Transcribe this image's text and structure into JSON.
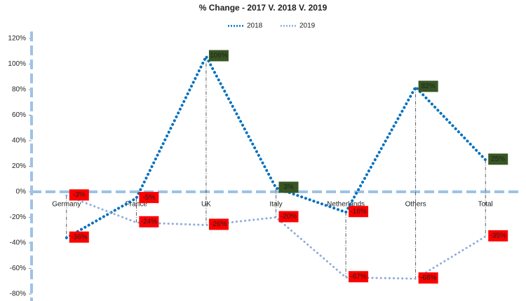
{
  "chart_data": {
    "type": "line",
    "title": "% Change - 2017 V. 2018 V. 2019",
    "categories": [
      "Germany",
      "France",
      "UK",
      "Italy",
      "Netherlands",
      "Others",
      "Total"
    ],
    "series": [
      {
        "name": "2018",
        "color": "#0070c0",
        "values": [
          -36,
          -5,
          106,
          3,
          -16,
          82,
          25
        ],
        "value_labels": [
          "-36%",
          "-5%",
          "106%",
          "3%",
          "-16%",
          "82%",
          "25%"
        ]
      },
      {
        "name": "2019",
        "color": "#8faadc",
        "values": [
          -3,
          -24,
          -26,
          -20,
          -67,
          -68,
          -35
        ],
        "value_labels": [
          "-3%",
          "-24%",
          "-26%",
          "-20%",
          "-67%",
          "-68%",
          "-35%"
        ]
      }
    ],
    "ylim": [
      -80,
      120
    ],
    "yticks": [
      {
        "value": -80,
        "label": "-80%"
      },
      {
        "value": -60,
        "label": "-60%"
      },
      {
        "value": -40,
        "label": "-40%"
      },
      {
        "value": -20,
        "label": "-20%"
      },
      {
        "value": 0,
        "label": "0%"
      },
      {
        "value": 20,
        "label": "20%"
      },
      {
        "value": 40,
        "label": "40%"
      },
      {
        "value": 60,
        "label": "60%"
      },
      {
        "value": 80,
        "label": "80%"
      },
      {
        "value": 100,
        "label": "100%"
      },
      {
        "value": 120,
        "label": "120%"
      }
    ],
    "label_colors": {
      "positive": "#375623",
      "negative": "#ff0000"
    },
    "legend": "top"
  }
}
